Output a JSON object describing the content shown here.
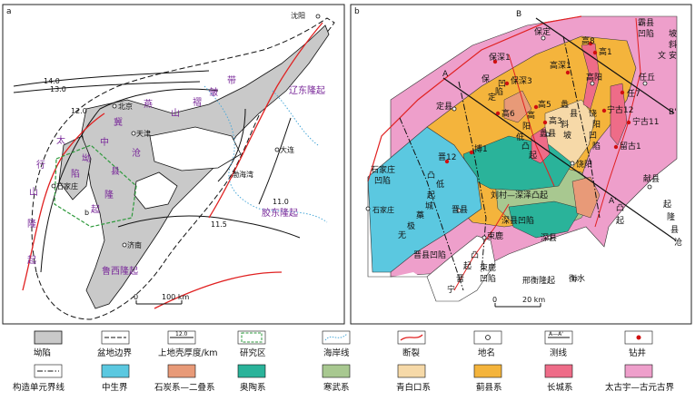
{
  "panel_a": {
    "tag": "a",
    "labels": {
      "shenyang": "沈阳",
      "beijing": "北京",
      "tianjin": "天津",
      "dalian": "大连",
      "bohai": "渤海湾",
      "shijiazhuang": "石家庄",
      "jinan": "济南",
      "b_marker": "b",
      "liaodong": "辽东隆起",
      "jiaodong": "胶东隆起",
      "luxi": "鲁西隆起",
      "yanshan": [
        "燕",
        "山",
        "褶",
        "皱",
        "带"
      ],
      "taihang": [
        "太",
        "行",
        "山",
        "隆",
        "起"
      ],
      "jizhong": [
        "冀",
        "中",
        "坳",
        "陷"
      ],
      "cangxian": [
        "沧",
        "县",
        "隆",
        "起"
      ],
      "contour_14": "14.0",
      "contour_13": "13.0",
      "contour_12": "12.0",
      "contour_115": "11.5",
      "contour_11": "11.0"
    },
    "scale": {
      "zero": "0",
      "end": "100 km"
    }
  },
  "panel_b": {
    "tag": "b",
    "labels": {
      "B": "B",
      "Bp": "B'",
      "A": "A",
      "Ap": "A'",
      "baxian": [
        "霸县",
        "凹陷"
      ],
      "wen_an": [
        "坡",
        "斜",
        "安",
        "文"
      ],
      "baoding": "保定",
      "baoshen1": "保深1",
      "bao_ding_ao": [
        "保",
        "定",
        "凹",
        "陷"
      ],
      "baoshen3": "保深3",
      "gao8": "高8",
      "gao1": "高1",
      "gaoshen1": "高深1",
      "gaoyang": "高阳",
      "renqiu": "任丘",
      "ren7": "任7",
      "dingxian": "定县",
      "gao6": "高6",
      "gao5": "高5",
      "gao3": "高3",
      "lixian": "蠡县",
      "ningjin12": "宁古12",
      "ningjin11": "宁古11",
      "liugu1": "留古1",
      "xian_slope": [
        "蠡",
        "县",
        "斜",
        "坡"
      ],
      "gaoyang_low": [
        "高",
        "阳",
        "低",
        "凸",
        "起"
      ],
      "raoyang_ao": [
        "饶",
        "阳",
        "凹",
        "陷"
      ],
      "raoyang": "饶阳",
      "bo1": "博1",
      "jin12": "晋12",
      "shijiazhuang_ao": [
        "石家庄",
        "凹陷"
      ],
      "shijiazhuang": "石家庄",
      "wuji_low": [
        "无",
        "极",
        "藁",
        "城",
        "低",
        "凸",
        "起"
      ],
      "jinxian_town": "晋县",
      "liucun": "刘村—深泽凸起",
      "shenxian_ao": "深县凹陷",
      "shenxian": "深县",
      "shu_lu": "束鹿",
      "shulu_ao": [
        "束鹿",
        "凹陷"
      ],
      "jinxian_ao": "晋县凹陷",
      "jinning_tu": [
        "晋",
        "宁",
        "凸",
        "起"
      ],
      "xinghengl": "邢衡隆起",
      "hengshui": "衡水",
      "jiao_he": [
        "献县"
      ],
      "xianxian_up": [
        "献县",
        "凸",
        "起"
      ],
      "cangxian_up": [
        "起",
        "隆",
        "县",
        "沧"
      ],
      "shenzhou": "深"
    },
    "scale": {
      "zero": "0",
      "end": "20 km"
    }
  },
  "legend": {
    "items": [
      {
        "key": "depression",
        "label": "坳陷",
        "color": "#c9c9c9"
      },
      {
        "key": "basin_boundary",
        "label": "盆地边界"
      },
      {
        "key": "crust_thickness",
        "label": "上地壳厚度/km",
        "value": "12.0"
      },
      {
        "key": "study_area",
        "label": "研究区",
        "color": "#2e9a3c"
      },
      {
        "key": "coastline",
        "label": "海岸线",
        "color": "#4aa8d8"
      },
      {
        "key": "fault",
        "label": "断裂",
        "color": "#e02020"
      },
      {
        "key": "place",
        "label": "地名"
      },
      {
        "key": "section_line",
        "label": "测线",
        "value": "A—A'"
      },
      {
        "key": "well",
        "label": "钻井",
        "color": "#d01010"
      },
      {
        "key": "tectonic_boundary",
        "label": "构造单元界线"
      },
      {
        "key": "mesozoic",
        "label": "中生界",
        "color": "#5bc8e0"
      },
      {
        "key": "carb_perm",
        "label": "石炭系—二叠系",
        "color": "#e89a78"
      },
      {
        "key": "ordovician",
        "label": "奥陶系",
        "color": "#2ab39a"
      },
      {
        "key": "cambrian",
        "label": "寒武系",
        "color": "#a8c890"
      },
      {
        "key": "qingbaikou",
        "label": "青白口系",
        "color": "#f6d9a8"
      },
      {
        "key": "jixian",
        "label": "蓟县系",
        "color": "#f4b43c"
      },
      {
        "key": "changcheng",
        "label": "长城系",
        "color": "#ee6c88"
      },
      {
        "key": "archean",
        "label": "太古宇—古元古界",
        "color": "#ee9fcb"
      }
    ]
  }
}
